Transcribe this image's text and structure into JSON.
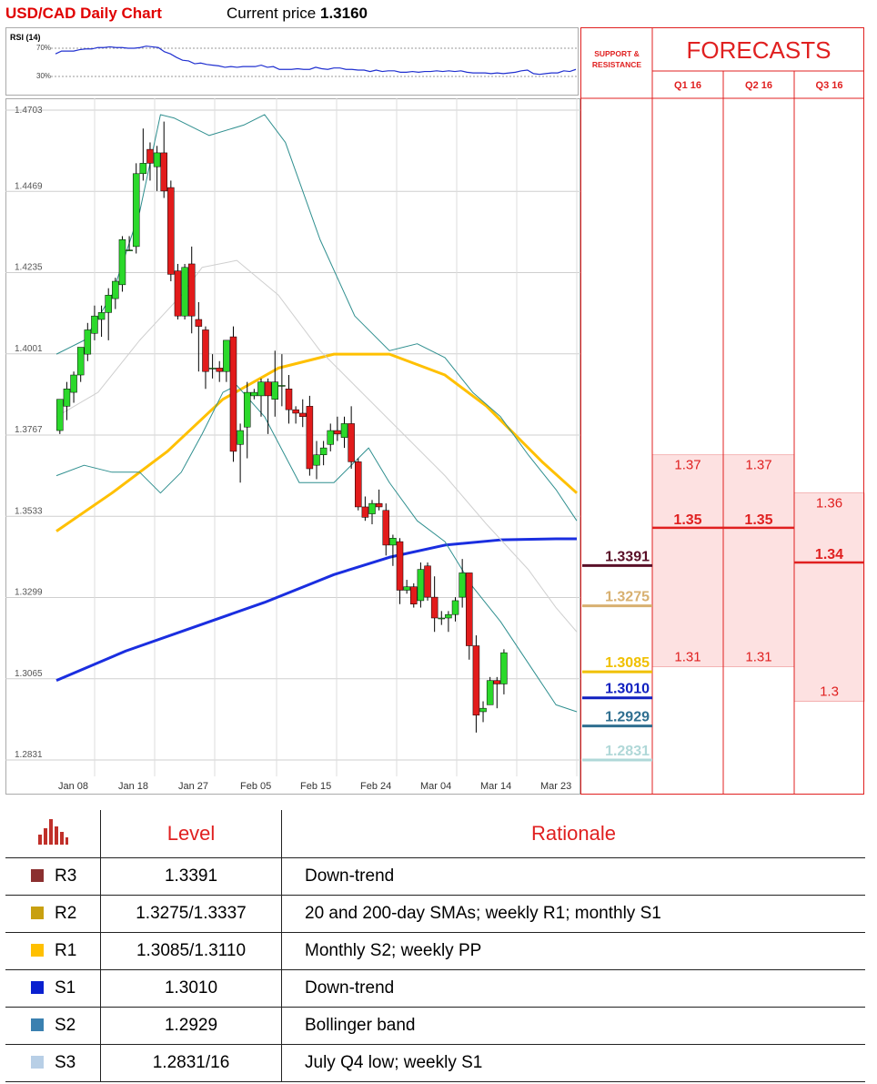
{
  "header": {
    "title": "USD/CAD Daily Chart",
    "price_label": "Current price",
    "price_value": "1.3160"
  },
  "rsi": {
    "label": "RSI (14)",
    "upper_label": "70%",
    "lower_label": "30%",
    "values": [
      62,
      66,
      66,
      66,
      68,
      69,
      69,
      71,
      71,
      72,
      71,
      71,
      70,
      70,
      71,
      73,
      72,
      71,
      65,
      62,
      57,
      53,
      52,
      48,
      49,
      47,
      46,
      45,
      43,
      44,
      43,
      44,
      44,
      44,
      46,
      43,
      44,
      40,
      40,
      40,
      41,
      40,
      40,
      43,
      41,
      40,
      42,
      42,
      40,
      40,
      39,
      39,
      37,
      39,
      37,
      38,
      38,
      36,
      36,
      37,
      36,
      37,
      37,
      38,
      37,
      38,
      37,
      38,
      36,
      35,
      35,
      35,
      34,
      35,
      34,
      35,
      36,
      38,
      39,
      34,
      33,
      34,
      35,
      35,
      38,
      37,
      40
    ]
  },
  "chart_data": {
    "type": "candlestick",
    "title": "USD/CAD Daily Chart",
    "y_ticks": [
      "1.4703",
      "1.4469",
      "1.4235",
      "1.4001",
      "1.3767",
      "1.3533",
      "1.3299",
      "1.3065",
      "1.2831"
    ],
    "ylim": [
      1.2831,
      1.4703
    ],
    "x_ticks": [
      "Jan 08",
      "Jan 18",
      "Jan 27",
      "Feb 05",
      "Feb 15",
      "Feb 24",
      "Mar 04",
      "Mar 14",
      "Mar 23"
    ],
    "grid": true,
    "candles": [
      [
        1.378,
        1.387,
        1.377,
        1.387
      ],
      [
        1.385,
        1.39,
        1.381,
        1.392
      ],
      [
        1.389,
        1.394,
        1.386,
        1.395
      ],
      [
        1.394,
        1.402,
        1.392,
        1.402
      ],
      [
        1.4,
        1.407,
        1.398,
        1.409
      ],
      [
        1.406,
        1.411,
        1.404,
        1.414
      ],
      [
        1.41,
        1.412,
        1.405,
        1.414
      ],
      [
        1.412,
        1.417,
        1.404,
        1.419
      ],
      [
        1.416,
        1.421,
        1.413,
        1.422
      ],
      [
        1.42,
        1.433,
        1.418,
        1.434
      ],
      [
        1.43,
        1.43,
        1.43,
        1.434
      ],
      [
        1.431,
        1.452,
        1.429,
        1.455
      ],
      [
        1.452,
        1.455,
        1.45,
        1.465
      ],
      [
        1.459,
        1.455,
        1.45,
        1.461
      ],
      [
        1.454,
        1.458,
        1.447,
        1.46
      ],
      [
        1.458,
        1.447,
        1.445,
        1.467
      ],
      [
        1.448,
        1.423,
        1.421,
        1.45
      ],
      [
        1.424,
        1.411,
        1.41,
        1.426
      ],
      [
        1.411,
        1.425,
        1.41,
        1.426
      ],
      [
        1.426,
        1.411,
        1.406,
        1.431
      ],
      [
        1.41,
        1.408,
        1.395,
        1.415
      ],
      [
        1.407,
        1.395,
        1.39,
        1.408
      ],
      [
        1.396,
        1.396,
        1.393,
        1.4
      ],
      [
        1.396,
        1.395,
        1.392,
        1.398
      ],
      [
        1.395,
        1.404,
        1.392,
        1.404
      ],
      [
        1.405,
        1.372,
        1.369,
        1.408
      ],
      [
        1.374,
        1.378,
        1.363,
        1.38
      ],
      [
        1.379,
        1.389,
        1.37,
        1.392
      ],
      [
        1.388,
        1.389,
        1.387,
        1.39
      ],
      [
        1.388,
        1.392,
        1.382,
        1.393
      ],
      [
        1.392,
        1.388,
        1.377,
        1.393
      ],
      [
        1.387,
        1.392,
        1.382,
        1.401
      ],
      [
        1.391,
        1.391,
        1.385,
        1.4
      ],
      [
        1.39,
        1.384,
        1.38,
        1.394
      ],
      [
        1.384,
        1.383,
        1.38,
        1.385
      ],
      [
        1.383,
        1.382,
        1.379,
        1.387
      ],
      [
        1.385,
        1.367,
        1.365,
        1.388
      ],
      [
        1.368,
        1.371,
        1.364,
        1.375
      ],
      [
        1.371,
        1.373,
        1.368,
        1.375
      ],
      [
        1.374,
        1.378,
        1.372,
        1.38
      ],
      [
        1.378,
        1.377,
        1.375,
        1.382
      ],
      [
        1.376,
        1.38,
        1.373,
        1.382
      ],
      [
        1.38,
        1.369,
        1.367,
        1.385
      ],
      [
        1.369,
        1.356,
        1.355,
        1.37
      ],
      [
        1.356,
        1.353,
        1.352,
        1.359
      ],
      [
        1.354,
        1.357,
        1.351,
        1.358
      ],
      [
        1.357,
        1.356,
        1.355,
        1.361
      ],
      [
        1.355,
        1.345,
        1.342,
        1.357
      ],
      [
        1.345,
        1.347,
        1.339,
        1.348
      ],
      [
        1.346,
        1.332,
        1.328,
        1.347
      ],
      [
        1.332,
        1.333,
        1.331,
        1.335
      ],
      [
        1.333,
        1.328,
        1.327,
        1.334
      ],
      [
        1.329,
        1.338,
        1.327,
        1.34
      ],
      [
        1.339,
        1.33,
        1.329,
        1.34
      ],
      [
        1.33,
        1.324,
        1.32,
        1.336
      ],
      [
        1.324,
        1.324,
        1.322,
        1.326
      ],
      [
        1.324,
        1.325,
        1.32,
        1.326
      ],
      [
        1.325,
        1.329,
        1.323,
        1.33
      ],
      [
        1.33,
        1.337,
        1.327,
        1.341
      ],
      [
        1.337,
        1.316,
        1.312,
        1.337
      ],
      [
        1.316,
        1.296,
        1.291,
        1.319
      ],
      [
        1.297,
        1.298,
        1.294,
        1.3
      ],
      [
        1.299,
        1.306,
        1.299,
        1.307
      ],
      [
        1.306,
        1.305,
        1.298,
        1.307
      ],
      [
        1.305,
        1.314,
        1.302,
        1.315
      ]
    ],
    "series": [
      {
        "name": "",
        "color": "#ffc000",
        "values": [
          [
            0,
            1.349
          ],
          [
            8,
            1.36
          ],
          [
            16,
            1.372
          ],
          [
            24,
            1.387
          ],
          [
            32,
            1.396
          ],
          [
            40,
            1.4
          ],
          [
            48,
            1.4
          ],
          [
            56,
            1.394
          ],
          [
            62,
            1.385
          ],
          [
            66,
            1.377
          ],
          [
            70,
            1.369
          ],
          [
            75,
            1.36
          ]
        ]
      },
      {
        "name": "",
        "color": "#1a2ee0",
        "values": [
          [
            0,
            1.306
          ],
          [
            10,
            1.3145
          ],
          [
            20,
            1.3215
          ],
          [
            30,
            1.3285
          ],
          [
            40,
            1.3365
          ],
          [
            48,
            1.3415
          ],
          [
            56,
            1.345
          ],
          [
            64,
            1.3465
          ],
          [
            72,
            1.3468
          ],
          [
            75,
            1.3468
          ]
        ]
      },
      {
        "name": "",
        "color": "#2f8f8f",
        "values": [
          [
            0,
            1.4
          ],
          [
            4,
            1.404
          ],
          [
            8,
            1.417
          ],
          [
            12,
            1.441
          ],
          [
            15,
            1.469
          ],
          [
            17,
            1.468
          ],
          [
            22,
            1.463
          ],
          [
            27,
            1.466
          ],
          [
            30,
            1.469
          ],
          [
            33,
            1.461
          ],
          [
            38,
            1.433
          ],
          [
            43,
            1.411
          ],
          [
            48,
            1.401
          ],
          [
            52,
            1.403
          ],
          [
            56,
            1.399
          ],
          [
            60,
            1.389
          ],
          [
            64,
            1.382
          ],
          [
            68,
            1.371
          ],
          [
            72,
            1.361
          ],
          [
            75,
            1.352
          ]
        ]
      },
      {
        "name": "",
        "color": "#2f8f8f",
        "values": [
          [
            0,
            1.365
          ],
          [
            4,
            1.368
          ],
          [
            8,
            1.366
          ],
          [
            12,
            1.366
          ],
          [
            15,
            1.36
          ],
          [
            18,
            1.366
          ],
          [
            21,
            1.377
          ],
          [
            24,
            1.389
          ],
          [
            26,
            1.391
          ],
          [
            30,
            1.382
          ],
          [
            35,
            1.363
          ],
          [
            40,
            1.363
          ],
          [
            45,
            1.373
          ],
          [
            48,
            1.363
          ],
          [
            52,
            1.352
          ],
          [
            56,
            1.346
          ],
          [
            60,
            1.333
          ],
          [
            64,
            1.323
          ],
          [
            68,
            1.311
          ],
          [
            72,
            1.299
          ],
          [
            75,
            1.297
          ]
        ]
      },
      {
        "name": "",
        "color": "#cfcfcf",
        "values": [
          [
            0,
            1.382
          ],
          [
            6,
            1.389
          ],
          [
            12,
            1.404
          ],
          [
            18,
            1.417
          ],
          [
            21,
            1.425
          ],
          [
            26,
            1.427
          ],
          [
            32,
            1.417
          ],
          [
            38,
            1.401
          ],
          [
            44,
            1.389
          ],
          [
            50,
            1.377
          ],
          [
            56,
            1.365
          ],
          [
            62,
            1.351
          ],
          [
            68,
            1.338
          ],
          [
            72,
            1.327
          ],
          [
            75,
            1.32
          ]
        ]
      }
    ]
  },
  "forecast_panel": {
    "support_resistance_label": "SUPPORT & RESISTANCE",
    "forecasts_title": "FORECASTS",
    "quarters": [
      "Q1 16",
      "Q2 16",
      "Q3 16"
    ],
    "q1": {
      "high": "1.37",
      "mid": "1.35",
      "low": "1.31",
      "range": [
        1.31,
        1.371
      ],
      "mid_value": 1.35
    },
    "q2": {
      "high": "1.37",
      "mid": "1.35",
      "low": "1.31",
      "range": [
        1.31,
        1.371
      ],
      "mid_value": 1.35
    },
    "q3": {
      "high": "1.36",
      "mid": "1.34",
      "low": "1.3",
      "range": [
        1.3,
        1.36
      ],
      "mid_value": 1.34
    },
    "sr_levels": [
      {
        "label": "1.3391",
        "value": 1.3391,
        "color": "#5a1028"
      },
      {
        "label": "1.3275",
        "value": 1.3275,
        "color": "#d8b070"
      },
      {
        "label": "1.3085",
        "value": 1.3085,
        "color": "#f0c000"
      },
      {
        "label": "1.3010",
        "value": 1.301,
        "color": "#1020c0"
      },
      {
        "label": "1.2929",
        "value": 1.2929,
        "color": "#2f6f90"
      },
      {
        "label": "1.2831",
        "value": 1.2831,
        "color": "#b0d8d8"
      }
    ]
  },
  "levels_table": {
    "headers": {
      "level": "Level",
      "rationale": "Rationale"
    },
    "rows": [
      {
        "name": "R3",
        "level": "1.3391",
        "rationale": "Down-trend",
        "color": "#8b3030"
      },
      {
        "name": "R2",
        "level": "1.3275/1.3337",
        "rationale": "20 and 200-day SMAs; weekly R1; monthly S1",
        "color": "#c8a010"
      },
      {
        "name": "R1",
        "level": "1.3085/1.3110",
        "rationale": "Monthly S2; weekly PP",
        "color": "#ffc000"
      },
      {
        "name": "S1",
        "level": "1.3010",
        "rationale": "Down-trend",
        "color": "#0a20d0"
      },
      {
        "name": "S2",
        "level": "1.2929",
        "rationale": "Bollinger band",
        "color": "#3a80b0"
      },
      {
        "name": "S3",
        "level": "1.2831/16",
        "rationale": "July Q4 low; weekly S1",
        "color": "#b8cfe6"
      }
    ]
  }
}
